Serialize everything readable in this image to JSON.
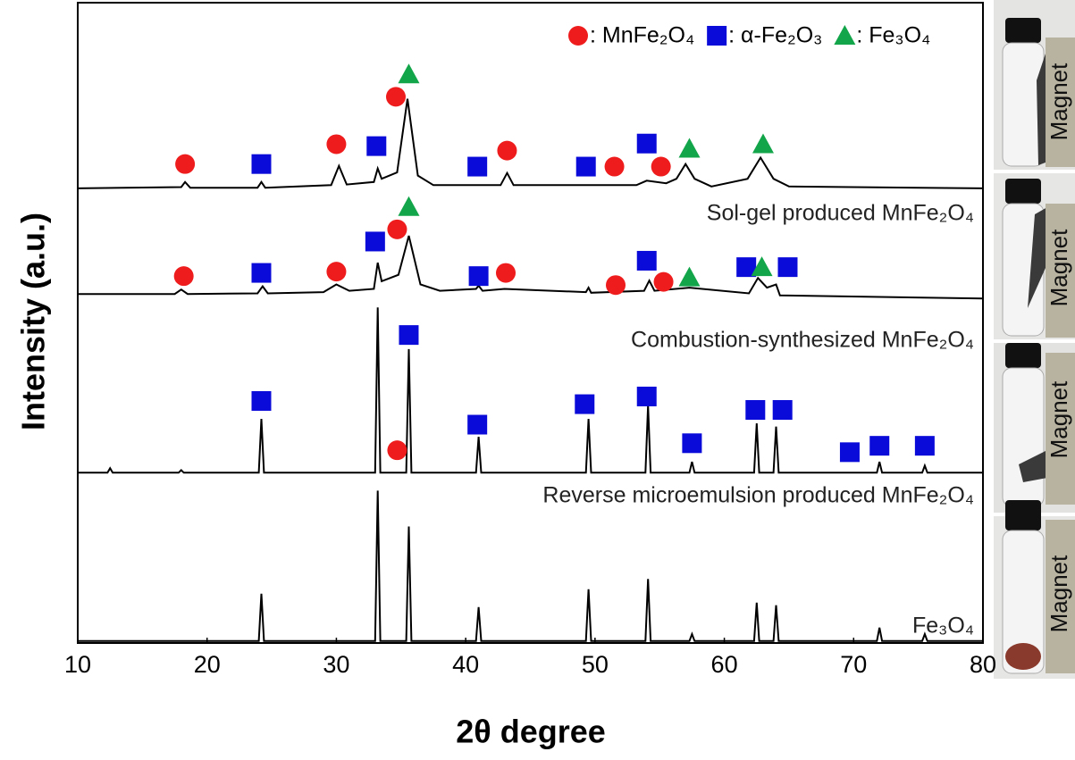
{
  "chart_data": {
    "type": "line",
    "x_label": "2θ degree",
    "y_label": "Intensity (a.u.)",
    "xlim": [
      10,
      80
    ],
    "xticks": [
      10,
      20,
      30,
      40,
      50,
      60,
      70,
      80
    ],
    "ylim": [
      0,
      100
    ],
    "color": "#000000",
    "series": [
      {
        "name": "Sol-gel produced MnFe₂O₄",
        "x": [
          10,
          18,
          18.3,
          18.7,
          23.9,
          24.2,
          24.5,
          29.6,
          30.2,
          30.8,
          32.9,
          33.2,
          33.5,
          34.7,
          35.5,
          36.3,
          37.5,
          42.7,
          43.2,
          43.7,
          53.2,
          54,
          55.5,
          56.3,
          57,
          57.7,
          59,
          61.8,
          62.8,
          63.8,
          65,
          80
        ],
        "values": [
          71.0,
          71.2,
          72.0,
          71.1,
          71.1,
          72.0,
          71.1,
          71.5,
          74.5,
          71.6,
          72.0,
          74.1,
          72.5,
          73.5,
          85.0,
          73.0,
          71.5,
          71.5,
          73.4,
          71.5,
          71.5,
          72.2,
          71.8,
          72.5,
          74.8,
          72.5,
          71.3,
          72.5,
          75.8,
          72.5,
          71.3,
          71.0
        ]
      },
      {
        "name": "Combustion-synthesized MnFe₂O₄",
        "x": [
          10,
          17.5,
          18,
          18.5,
          23.9,
          24.3,
          24.7,
          29,
          30,
          31,
          32.9,
          33.2,
          33.5,
          34.8,
          35.6,
          36.5,
          38,
          40.8,
          41,
          41.3,
          43,
          49.3,
          49.5,
          49.7,
          53.8,
          54.2,
          54.6,
          57.3,
          61.9,
          62.6,
          63.3,
          64,
          64.3,
          80
        ],
        "values": [
          54.5,
          54.5,
          55.2,
          54.5,
          54.6,
          55.7,
          54.6,
          54.8,
          56.0,
          55.0,
          55.3,
          59.4,
          56.5,
          57.5,
          63.6,
          56.0,
          55.0,
          55.3,
          55.8,
          55.0,
          55.3,
          54.8,
          55.5,
          54.7,
          55.0,
          56.6,
          55.0,
          55.5,
          54.6,
          57.0,
          55.5,
          56.0,
          54.3,
          53.8
        ]
      },
      {
        "name": "Reverse microemulsion produced MnFe₂O₄",
        "x": [
          10,
          12.3,
          12.5,
          12.7,
          17.8,
          18,
          18.2,
          24.0,
          24.2,
          24.4,
          33.0,
          33.2,
          33.4,
          35.4,
          35.6,
          35.8,
          40.8,
          41,
          41.2,
          49.3,
          49.5,
          49.7,
          53.9,
          54.1,
          54.3,
          57.3,
          57.5,
          57.7,
          62.3,
          62.5,
          62.7,
          63.8,
          64,
          64.2,
          71.8,
          72,
          72.2,
          75.3,
          75.5,
          75.7,
          80
        ],
        "values": [
          26.6,
          26.6,
          27.3,
          26.6,
          26.6,
          27.0,
          26.6,
          26.6,
          35.0,
          26.6,
          26.6,
          52.4,
          26.6,
          26.6,
          45.9,
          26.6,
          26.6,
          32.2,
          26.6,
          26.6,
          35.0,
          26.6,
          26.6,
          37.1,
          26.6,
          26.6,
          28.3,
          26.6,
          26.6,
          34.3,
          26.6,
          26.6,
          33.8,
          26.6,
          26.6,
          28.3,
          26.6,
          26.6,
          27.7,
          26.6,
          26.6
        ]
      },
      {
        "name": "Fe₃O₄",
        "x": [
          10,
          24.0,
          24.2,
          24.4,
          33.0,
          33.2,
          33.4,
          35.4,
          35.6,
          35.8,
          40.8,
          41,
          41.2,
          49.3,
          49.5,
          49.7,
          53.9,
          54.1,
          54.3,
          57.3,
          57.5,
          57.7,
          62.3,
          62.5,
          62.7,
          63.8,
          64,
          64.2,
          71.8,
          72,
          72.2,
          75.3,
          75.5,
          75.7,
          80
        ],
        "values": [
          0.3,
          0.3,
          7.7,
          0.3,
          0.3,
          23.8,
          0.3,
          0.3,
          18.2,
          0.3,
          0.3,
          5.6,
          0.3,
          0.3,
          8.4,
          0.3,
          0.3,
          10.0,
          0.3,
          0.3,
          1.4,
          0.3,
          0.3,
          6.3,
          0.3,
          0.3,
          5.9,
          0.3,
          0.3,
          2.4,
          0.3,
          0.3,
          1.4,
          0.3,
          0.3
        ]
      }
    ],
    "phases": [
      {
        "name": ": MnFe₂O₄",
        "shape": "circle",
        "color": "#ee1c1c",
        "points": [
          [
            18.3,
            74.8
          ],
          [
            30,
            77.9
          ],
          [
            34.6,
            85.3
          ],
          [
            43.2,
            76.9
          ],
          [
            51.5,
            74.4
          ],
          [
            55.1,
            74.4
          ],
          [
            18.2,
            57.3
          ],
          [
            30,
            58.0
          ],
          [
            34.7,
            64.6
          ],
          [
            43.1,
            57.8
          ],
          [
            51.6,
            55.9
          ],
          [
            55.3,
            56.4
          ],
          [
            34.7,
            30.1
          ]
        ]
      },
      {
        "name": ": α-Fe₂O₃",
        "shape": "square",
        "color": "#0b0bd9",
        "points": [
          [
            24.2,
            74.8
          ],
          [
            33.1,
            77.6
          ],
          [
            40.9,
            74.4
          ],
          [
            49.3,
            74.4
          ],
          [
            54,
            78.0
          ],
          [
            24.2,
            57.8
          ],
          [
            33,
            62.7
          ],
          [
            41,
            57.3
          ],
          [
            54,
            59.7
          ],
          [
            61.7,
            58.7
          ],
          [
            64.9,
            58.7
          ],
          [
            24.2,
            37.8
          ],
          [
            35.6,
            48.1
          ],
          [
            40.9,
            34.1
          ],
          [
            49.2,
            37.3
          ],
          [
            54,
            38.5
          ],
          [
            57.5,
            31.2
          ],
          [
            62.4,
            36.4
          ],
          [
            64.5,
            36.4
          ],
          [
            69.7,
            29.8
          ],
          [
            72,
            30.8
          ],
          [
            75.5,
            30.8
          ]
        ]
      },
      {
        "name": ": Fe₃O₄",
        "shape": "triangle",
        "color": "#12a54a",
        "points": [
          [
            35.6,
            88.8
          ],
          [
            57.3,
            77.2
          ],
          [
            63,
            77.9
          ],
          [
            35.6,
            68.1
          ],
          [
            57.3,
            57.1
          ],
          [
            62.9,
            58.7
          ]
        ]
      }
    ]
  },
  "photo_labels": [
    "Magnet",
    "Magnet",
    "Magnet",
    "Magnet"
  ]
}
